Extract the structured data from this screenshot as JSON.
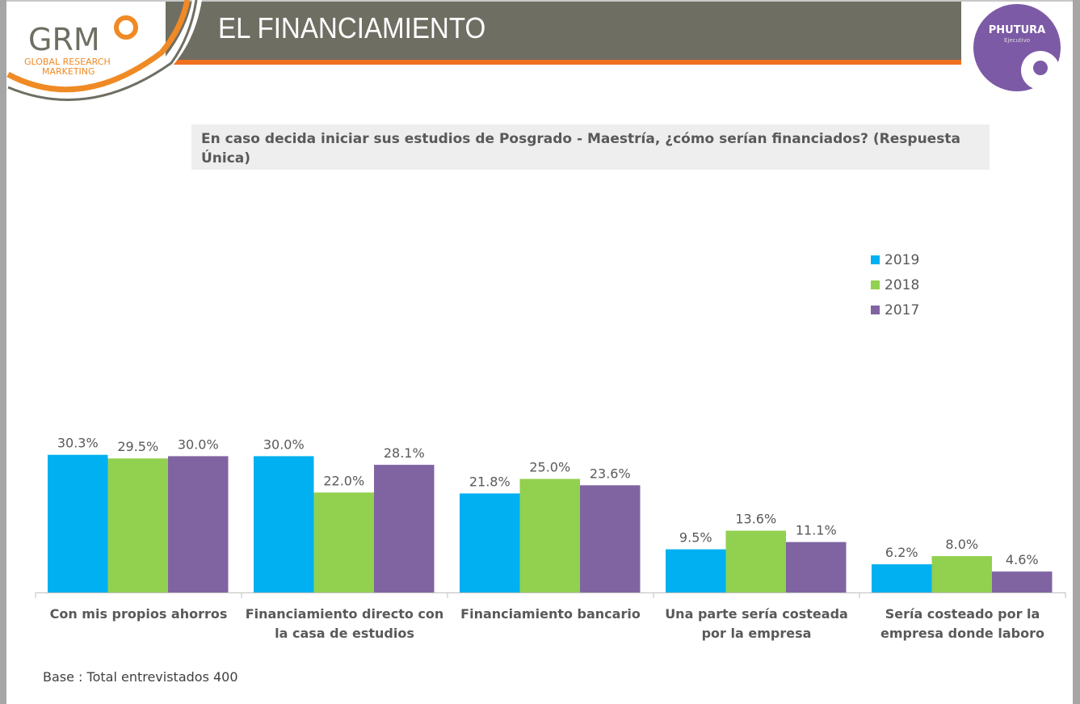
{
  "header": {
    "title": "EL FINANCIAMIENTO",
    "logo_left": "GRM GLOBAL RESEARCH MARKETING",
    "logo_right": "PHUTURA Ejecutivo"
  },
  "question": "En caso decida iniciar sus estudios de Posgrado - Maestría, ¿cómo serían financiados? (Respuesta Única)",
  "footer": "Base : Total entrevistados 400",
  "chart_data": {
    "type": "bar",
    "categories": [
      "Con mis propios ahorros",
      "Financiamiento directo con la casa de estudios",
      "Financiamiento bancario",
      "Una parte sería costeada por la empresa",
      "Sería costeado por la empresa donde laboro"
    ],
    "series": [
      {
        "name": "2019",
        "color": "#00b0f0",
        "values": [
          30.3,
          30.0,
          21.8,
          9.5,
          6.2
        ]
      },
      {
        "name": "2018",
        "color": "#92d050",
        "values": [
          29.5,
          22.0,
          25.0,
          13.6,
          8.0
        ]
      },
      {
        "name": "2017",
        "color": "#8064a2",
        "values": [
          30.0,
          28.1,
          23.6,
          11.1,
          4.6
        ]
      }
    ],
    "value_format": "%",
    "ylim": [
      0,
      35
    ],
    "grid": false,
    "legend_position": "right"
  }
}
